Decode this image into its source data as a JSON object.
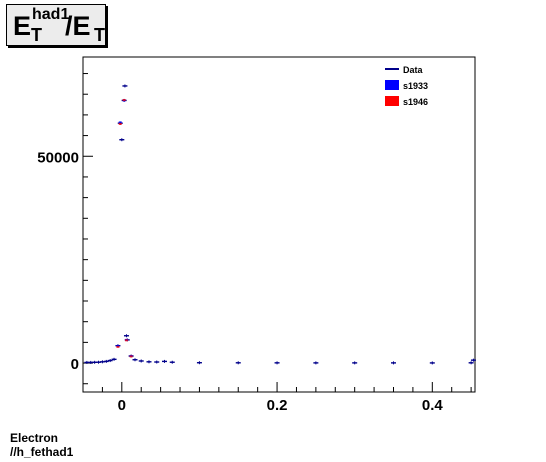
{
  "title": {
    "main": "E",
    "sup": "had1",
    "sub": "T",
    "slash": "/E",
    "sub2": "T"
  },
  "footer": {
    "line1": "Electron",
    "line2": "//h_fethad1"
  },
  "legend": [
    {
      "label": "Data",
      "color": "#00008b",
      "style": "line"
    },
    {
      "label": "s1933",
      "color": "#0000ff",
      "style": "box"
    },
    {
      "label": "s1946",
      "color": "#ff0000",
      "style": "box"
    }
  ],
  "chart_data": {
    "type": "scatter",
    "xlim": [
      -0.05,
      0.455
    ],
    "ylim": [
      -7000,
      74000
    ],
    "x_ticks": [
      {
        "v": 0,
        "label": "0"
      },
      {
        "v": 0.2,
        "label": "0.2"
      },
      {
        "v": 0.4,
        "label": "0.4"
      }
    ],
    "y_ticks": [
      {
        "v": 0,
        "label": "0"
      },
      {
        "v": 50000,
        "label": "50000"
      }
    ],
    "grid": false,
    "legend_position": "top-right",
    "series": [
      {
        "name": "Data",
        "color": "#00008b",
        "points": [
          [
            -0.045,
            150
          ],
          [
            -0.04,
            150
          ],
          [
            -0.035,
            180
          ],
          [
            -0.03,
            200
          ],
          [
            -0.025,
            300
          ],
          [
            -0.02,
            400
          ],
          [
            -0.015,
            600
          ],
          [
            -0.01,
            900
          ],
          [
            -0.005,
            4200
          ],
          [
            -0.002,
            58000
          ],
          [
            0.0,
            54000
          ],
          [
            0.003,
            63500
          ],
          [
            0.004,
            67000
          ],
          [
            0.006,
            6600
          ],
          [
            0.007,
            5600
          ],
          [
            0.012,
            1700
          ],
          [
            0.017,
            800
          ],
          [
            0.025,
            500
          ],
          [
            0.035,
            300
          ],
          [
            0.045,
            250
          ],
          [
            0.055,
            400
          ],
          [
            0.065,
            200
          ],
          [
            0.1,
            80
          ],
          [
            0.15,
            60
          ],
          [
            0.2,
            50
          ],
          [
            0.25,
            40
          ],
          [
            0.3,
            40
          ],
          [
            0.35,
            40
          ],
          [
            0.4,
            30
          ],
          [
            0.45,
            60
          ],
          [
            0.453,
            700
          ]
        ]
      },
      {
        "name": "s1933",
        "color": "#0000ff",
        "points": [
          [
            -0.005,
            4100
          ],
          [
            -0.002,
            58200
          ],
          [
            0.003,
            63500
          ],
          [
            0.006,
            5600
          ],
          [
            0.012,
            1700
          ]
        ]
      },
      {
        "name": "s1946",
        "color": "#ff0000",
        "points": [
          [
            -0.005,
            3900
          ],
          [
            -0.002,
            57800
          ],
          [
            0.003,
            63600
          ],
          [
            0.006,
            5500
          ],
          [
            0.012,
            1600
          ]
        ]
      }
    ]
  }
}
